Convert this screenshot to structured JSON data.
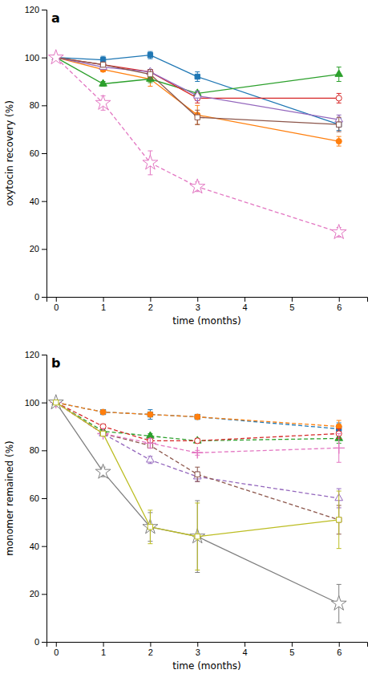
{
  "chart_data": [
    {
      "type": "line",
      "title": "a",
      "x_label": "time (months)",
      "y_label": "oxytocin recovery (%)",
      "xlim": [
        -0.2,
        6.6
      ],
      "xticks": [
        0,
        1,
        2,
        3,
        4,
        5,
        6
      ],
      "ylim": [
        0,
        120
      ],
      "yticks": [
        0,
        20,
        40,
        60,
        80,
        100,
        120
      ],
      "grid": false,
      "x": [
        0,
        1,
        2,
        3,
        6
      ],
      "series": [
        {
          "values": [
            100,
            99,
            101,
            92,
            72
          ],
          "errors": [
            0,
            1.5,
            1.5,
            2,
            2.5
          ],
          "marker": "square",
          "line_style": "solid"
        },
        {
          "values": [
            100,
            95,
            91,
            76,
            65
          ],
          "errors": [
            0,
            1,
            3,
            4,
            2
          ],
          "marker": "circle",
          "line_style": "solid"
        },
        {
          "values": [
            100,
            89,
            91,
            85,
            93
          ],
          "errors": [
            0,
            1,
            1.5,
            1,
            3
          ],
          "marker": "triangle",
          "line_style": "solid"
        },
        {
          "values": [
            100,
            97,
            94,
            83,
            83
          ],
          "errors": [
            0,
            1,
            1,
            2,
            2
          ],
          "marker": "circle-open",
          "line_style": "solid"
        },
        {
          "values": [
            100,
            96,
            94,
            84,
            74
          ],
          "errors": [
            0,
            1,
            1,
            2,
            2
          ],
          "marker": "triangle-open",
          "line_style": "solid"
        },
        {
          "values": [
            100,
            97,
            93,
            75,
            72
          ],
          "errors": [
            0,
            1,
            2,
            3,
            3
          ],
          "marker": "square-open",
          "line_style": "solid"
        },
        {
          "values": [
            100,
            81,
            56,
            46,
            27
          ],
          "errors": [
            0,
            3,
            5,
            2,
            2
          ],
          "marker": "star-open",
          "line_style": "dashed"
        }
      ]
    },
    {
      "type": "line",
      "title": "b",
      "x_label": "time (months)",
      "y_label": "monomer remained (%)",
      "xlim": [
        -0.2,
        6.6
      ],
      "xticks": [
        0,
        1,
        2,
        3,
        4,
        5,
        6
      ],
      "ylim": [
        0,
        120
      ],
      "yticks": [
        0,
        20,
        40,
        60,
        80,
        100,
        120
      ],
      "grid": false,
      "x": [
        0,
        1,
        2,
        3,
        6
      ],
      "series": [
        {
          "values": [
            100,
            96,
            95,
            94,
            89
          ],
          "errors": [
            0,
            0.5,
            2,
            1,
            2.5
          ],
          "marker": "square",
          "line_style": "dashed"
        },
        {
          "values": [
            100,
            96,
            95,
            94,
            90
          ],
          "errors": [
            0,
            0.5,
            1,
            1,
            2.5
          ],
          "marker": "circle",
          "line_style": "dashed"
        },
        {
          "values": [
            100,
            88,
            86,
            84,
            85
          ],
          "errors": [
            0,
            1,
            1,
            1,
            2
          ],
          "marker": "triangle",
          "line_style": "dashed"
        },
        {
          "values": [
            100,
            90,
            84,
            84,
            87
          ],
          "errors": [
            0,
            1,
            1,
            1,
            2
          ],
          "marker": "circle-open",
          "line_style": "dashed"
        },
        {
          "values": [
            100,
            87,
            76,
            69,
            60
          ],
          "errors": [
            0,
            1,
            1.5,
            2,
            4
          ],
          "marker": "triangle-open",
          "line_style": "dashed"
        },
        {
          "values": [
            100,
            87,
            82,
            70,
            51
          ],
          "errors": [
            0,
            1,
            1,
            3,
            6
          ],
          "marker": "square-open",
          "line_style": "dashed"
        },
        {
          "values": [
            100,
            87,
            83,
            79,
            81
          ],
          "errors": [
            0,
            1,
            2,
            1,
            6
          ],
          "marker": "plus",
          "line_style": "dashed"
        },
        {
          "values": [
            100,
            71,
            48,
            44,
            16
          ],
          "errors": [
            0,
            2,
            6,
            15,
            8
          ],
          "marker": "star-open",
          "line_style": "solid"
        },
        {
          "values": [
            100,
            87,
            48,
            44,
            51
          ],
          "errors": [
            0,
            1,
            7,
            14,
            12
          ],
          "marker": "square-open",
          "line_style": "solid"
        }
      ]
    }
  ]
}
